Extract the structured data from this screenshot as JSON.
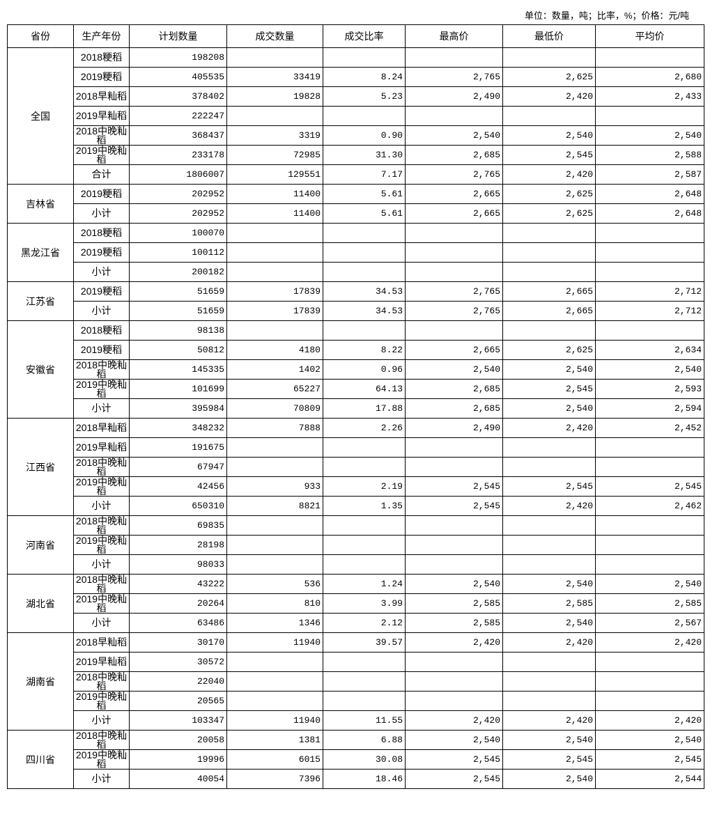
{
  "unit_note": "单位：数量，吨；比率，%；价格：元/吨",
  "headers": [
    "省份",
    "生产年份",
    "计划数量",
    "成交数量",
    "成交比率",
    "最高价",
    "最低价",
    "平均价"
  ],
  "provinces": [
    {
      "name": "全国",
      "rows": [
        [
          "2018粳稻",
          "198208",
          "",
          "",
          "",
          "",
          ""
        ],
        [
          "2019粳稻",
          "405535",
          "33419",
          "8.24",
          "2,765",
          "2,625",
          "2,680"
        ],
        [
          "2018早籼稻",
          "378402",
          "19828",
          "5.23",
          "2,490",
          "2,420",
          "2,433"
        ],
        [
          "2019早籼稻",
          "222247",
          "",
          "",
          "",
          "",
          ""
        ],
        [
          "2018中晚籼稻",
          "368437",
          "3319",
          "0.90",
          "2,540",
          "2,540",
          "2,540"
        ],
        [
          "2019中晚籼稻",
          "233178",
          "72985",
          "31.30",
          "2,685",
          "2,545",
          "2,588"
        ],
        [
          "合计",
          "1806007",
          "129551",
          "7.17",
          "2,765",
          "2,420",
          "2,587"
        ]
      ]
    },
    {
      "name": "吉林省",
      "rows": [
        [
          "2019粳稻",
          "202952",
          "11400",
          "5.61",
          "2,665",
          "2,625",
          "2,648"
        ],
        [
          "小计",
          "202952",
          "11400",
          "5.61",
          "2,665",
          "2,625",
          "2,648"
        ]
      ]
    },
    {
      "name": "黑龙江省",
      "rows": [
        [
          "2018粳稻",
          "100070",
          "",
          "",
          "",
          "",
          ""
        ],
        [
          "2019粳稻",
          "100112",
          "",
          "",
          "",
          "",
          ""
        ],
        [
          "小计",
          "200182",
          "",
          "",
          "",
          "",
          ""
        ]
      ]
    },
    {
      "name": "江苏省",
      "rows": [
        [
          "2019粳稻",
          "51659",
          "17839",
          "34.53",
          "2,765",
          "2,665",
          "2,712"
        ],
        [
          "小计",
          "51659",
          "17839",
          "34.53",
          "2,765",
          "2,665",
          "2,712"
        ]
      ]
    },
    {
      "name": "安徽省",
      "rows": [
        [
          "2018粳稻",
          "98138",
          "",
          "",
          "",
          "",
          ""
        ],
        [
          "2019粳稻",
          "50812",
          "4180",
          "8.22",
          "2,665",
          "2,625",
          "2,634"
        ],
        [
          "2018中晚籼稻",
          "145335",
          "1402",
          "0.96",
          "2,540",
          "2,540",
          "2,540"
        ],
        [
          "2019中晚籼稻",
          "101699",
          "65227",
          "64.13",
          "2,685",
          "2,545",
          "2,593"
        ],
        [
          "小计",
          "395984",
          "70809",
          "17.88",
          "2,685",
          "2,540",
          "2,594"
        ]
      ]
    },
    {
      "name": "江西省",
      "rows": [
        [
          "2018早籼稻",
          "348232",
          "7888",
          "2.26",
          "2,490",
          "2,420",
          "2,452"
        ],
        [
          "2019早籼稻",
          "191675",
          "",
          "",
          "",
          "",
          ""
        ],
        [
          "2018中晚籼稻",
          "67947",
          "",
          "",
          "",
          "",
          ""
        ],
        [
          "2019中晚籼稻",
          "42456",
          "933",
          "2.19",
          "2,545",
          "2,545",
          "2,545"
        ],
        [
          "小计",
          "650310",
          "8821",
          "1.35",
          "2,545",
          "2,420",
          "2,462"
        ]
      ]
    },
    {
      "name": "河南省",
      "rows": [
        [
          "2018中晚籼稻",
          "69835",
          "",
          "",
          "",
          "",
          ""
        ],
        [
          "2019中晚籼稻",
          "28198",
          "",
          "",
          "",
          "",
          ""
        ],
        [
          "小计",
          "98033",
          "",
          "",
          "",
          "",
          ""
        ]
      ]
    },
    {
      "name": "湖北省",
      "rows": [
        [
          "2018中晚籼稻",
          "43222",
          "536",
          "1.24",
          "2,540",
          "2,540",
          "2,540"
        ],
        [
          "2019中晚籼稻",
          "20264",
          "810",
          "3.99",
          "2,585",
          "2,585",
          "2,585"
        ],
        [
          "小计",
          "63486",
          "1346",
          "2.12",
          "2,585",
          "2,540",
          "2,567"
        ]
      ]
    },
    {
      "name": "湖南省",
      "rows": [
        [
          "2018早籼稻",
          "30170",
          "11940",
          "39.57",
          "2,420",
          "2,420",
          "2,420"
        ],
        [
          "2019早籼稻",
          "30572",
          "",
          "",
          "",
          "",
          ""
        ],
        [
          "2018中晚籼稻",
          "22040",
          "",
          "",
          "",
          "",
          ""
        ],
        [
          "2019中晚籼稻",
          "20565",
          "",
          "",
          "",
          "",
          ""
        ],
        [
          "小计",
          "103347",
          "11940",
          "11.55",
          "2,420",
          "2,420",
          "2,420"
        ]
      ]
    },
    {
      "name": "四川省",
      "rows": [
        [
          "2018中晚籼稻",
          "20058",
          "1381",
          "6.88",
          "2,540",
          "2,540",
          "2,540"
        ],
        [
          "2019中晚籼稻",
          "19996",
          "6015",
          "30.08",
          "2,545",
          "2,545",
          "2,545"
        ],
        [
          "小计",
          "40054",
          "7396",
          "18.46",
          "2,545",
          "2,540",
          "2,544"
        ]
      ]
    }
  ]
}
